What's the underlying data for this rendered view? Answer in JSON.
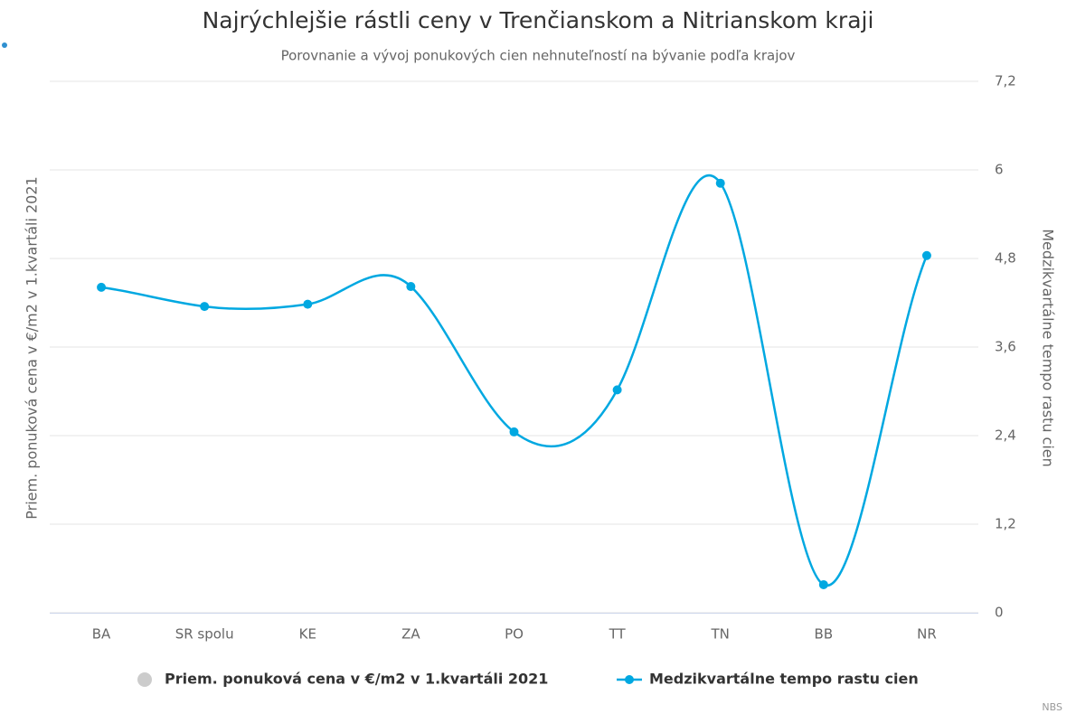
{
  "chart_data": {
    "type": "line",
    "title": "Najrýchlejšie rástli ceny v Trenčianskom a Nitrianskom kraji",
    "subtitle": "Porovnanie a vývoj ponukových cien nehnuteľností na bývanie podľa krajov",
    "y_label": "Priem. ponuková cena v €/m2 v 1.kvartáli 2021",
    "y2_label": "Medzikvartálne tempo rastu cien",
    "categories": [
      "BA",
      "SR spolu",
      "KE",
      "ZA",
      "PO",
      "TT",
      "TN",
      "BB",
      "NR"
    ],
    "series": [
      {
        "name": "Priem. ponuková cena v €/m2 v 1.kvartáli 2021",
        "color": "#cccccc",
        "hidden": true,
        "values": [
          null,
          null,
          null,
          null,
          null,
          null,
          null,
          null,
          null
        ]
      },
      {
        "name": "Medzikvartálne tempo rastu cien",
        "color": "#00a8e1",
        "axis": "y2",
        "values": [
          4.41,
          4.15,
          4.18,
          4.42,
          2.45,
          3.02,
          5.82,
          0.38,
          4.84
        ]
      }
    ],
    "y2lim": [
      0,
      7.2
    ],
    "y2ticks": [
      0,
      {
        "value": 1.2,
        "label": "1,2"
      },
      {
        "value": 2.4,
        "label": "2,4"
      },
      {
        "value": 3.6,
        "label": "3,6"
      },
      {
        "value": 4.8,
        "label": "4,8"
      },
      6,
      {
        "value": 7.2,
        "label": "7,2"
      }
    ],
    "grid": true,
    "credits": "NBS"
  }
}
